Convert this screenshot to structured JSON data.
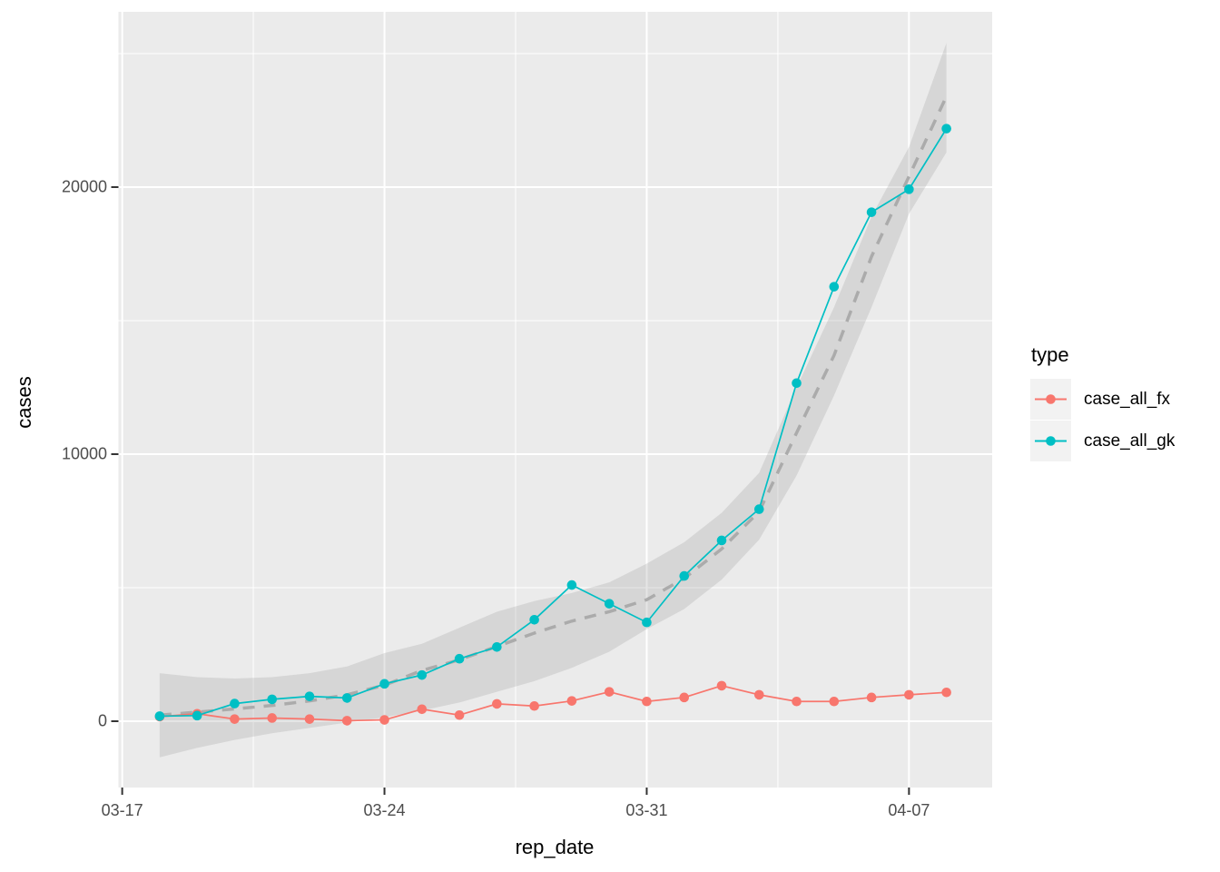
{
  "chart": {
    "legend": {
      "title": "type",
      "entries": [
        {
          "label": "case_all_fx",
          "color": "#F8766D"
        },
        {
          "label": "case_all_gk",
          "color": "#00BFC4"
        }
      ]
    }
  },
  "chart_data": {
    "type": "line",
    "title": "",
    "xlabel": "rep_date",
    "ylabel": "cases",
    "legend_position": "right",
    "grid": true,
    "panel_bg": "#EBEBEB",
    "grid_color": "#FFFFFF",
    "axis_text_color": "#4D4D4D",
    "smooth_line_color": "#ABABAB",
    "ribbon_color": "#999999",
    "x_dates": [
      "03-18",
      "03-19",
      "03-20",
      "03-21",
      "03-22",
      "03-23",
      "03-24",
      "03-25",
      "03-26",
      "03-27",
      "03-28",
      "03-29",
      "03-30",
      "03-31",
      "04-01",
      "04-02",
      "04-03",
      "04-04",
      "04-05",
      "04-06",
      "04-07",
      "04-08"
    ],
    "x_days": [
      1,
      2,
      3,
      4,
      5,
      6,
      7,
      8,
      9,
      10,
      11,
      12,
      13,
      14,
      15,
      16,
      17,
      18,
      19,
      20,
      21,
      22
    ],
    "series": [
      {
        "name": "case_all_fx",
        "color": "#F8766D",
        "values": [
          170,
          280,
          80,
          120,
          80,
          20,
          50,
          450,
          230,
          650,
          570,
          760,
          1100,
          740,
          890,
          1330,
          990,
          740,
          740,
          890,
          990,
          1080
        ]
      },
      {
        "name": "case_all_gk",
        "color": "#00BFC4",
        "values": [
          190,
          210,
          660,
          820,
          930,
          870,
          1400,
          1730,
          2340,
          2780,
          3800,
          5100,
          4400,
          3700,
          5440,
          6770,
          7940,
          12660,
          16270,
          19060,
          19920,
          22190
        ]
      }
    ],
    "smooth": {
      "name": "loess trend (dashed) with confidence ribbon",
      "values": [
        230,
        340,
        460,
        590,
        760,
        990,
        1350,
        1900,
        2300,
        2800,
        3300,
        3750,
        4100,
        4550,
        5350,
        6450,
        7850,
        10800,
        13700,
        17400,
        20400,
        23400
      ],
      "lower": [
        -1350,
        -1000,
        -700,
        -450,
        -250,
        -50,
        150,
        400,
        700,
        1100,
        1500,
        2000,
        2600,
        3450,
        4200,
        5300,
        6800,
        9200,
        12200,
        15500,
        19000,
        21300
      ],
      "upper": [
        1800,
        1650,
        1600,
        1650,
        1800,
        2050,
        2550,
        2900,
        3500,
        4100,
        4500,
        4800,
        5200,
        5900,
        6700,
        7800,
        9300,
        12500,
        15500,
        18900,
        21500,
        25400
      ]
    },
    "x_ticks": [
      {
        "day": 0,
        "label": "03-17"
      },
      {
        "day": 7,
        "label": "03-24"
      },
      {
        "day": 14,
        "label": "03-31"
      },
      {
        "day": 21,
        "label": "04-07"
      }
    ],
    "x_minor_days": [
      3.5,
      10.5,
      17.5
    ],
    "y_ticks": [
      {
        "value": 0,
        "label": "0"
      },
      {
        "value": 10000,
        "label": "10000"
      },
      {
        "value": 20000,
        "label": "20000"
      }
    ],
    "y_minor_values": [
      5000,
      15000,
      25000
    ],
    "xlim_days": [
      -0.1,
      23.22
    ],
    "ylim": [
      -2483,
      26565
    ]
  }
}
